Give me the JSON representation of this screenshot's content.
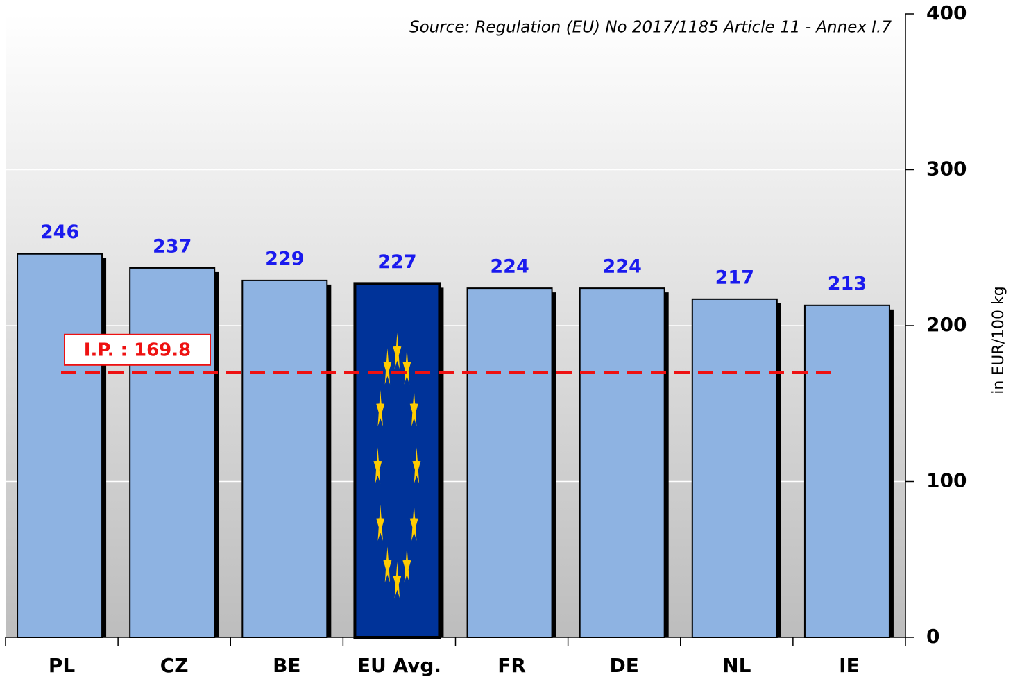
{
  "chart_data": {
    "type": "bar",
    "subtitle": "Source: Regulation (EU) No 2017/1185 Article 11 - Annex I.7",
    "y_label": "in  EUR/100  kg",
    "categories": [
      "PL",
      "CZ",
      "BE",
      "EU Avg.",
      "FR",
      "DE",
      "NL",
      "IE"
    ],
    "values": [
      246,
      237,
      229,
      227,
      224,
      224,
      217,
      213
    ],
    "colors": [
      "#8eb3e2",
      "#8eb3e2",
      "#8eb3e2",
      "#003399",
      "#8eb3e2",
      "#8eb3e2",
      "#8eb3e2",
      "#8eb3e2"
    ],
    "label_color": "#1a1aee",
    "ylim": [
      0,
      400
    ],
    "yticks": [
      0,
      100,
      200,
      300,
      400
    ],
    "grid": true,
    "reference_line": {
      "value": 169.8,
      "label": "I.P. : 169.8",
      "color": "#ee1111"
    }
  }
}
